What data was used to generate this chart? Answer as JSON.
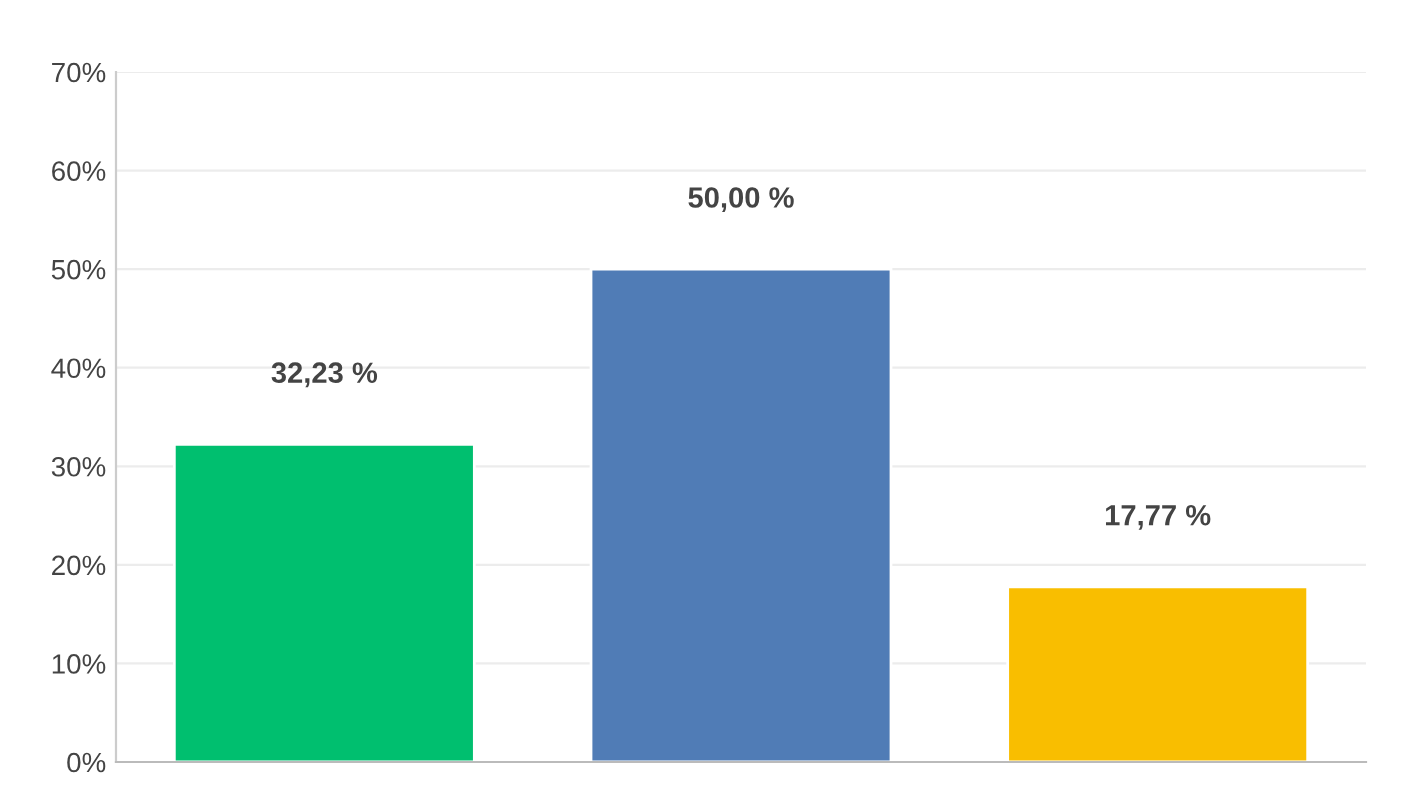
{
  "chart_data": {
    "type": "bar",
    "categories": [
      null,
      null,
      null
    ],
    "values": [
      32.23,
      50.0,
      17.77
    ],
    "colors": [
      "#00bf6f",
      "#507cb6",
      "#f9be00"
    ],
    "value_labels": [
      "32,23 %",
      "50,00 %",
      "17,77 %"
    ],
    "ylim": [
      0,
      70
    ],
    "yticks": [
      {
        "value": 0,
        "label": "0%"
      },
      {
        "value": 10,
        "label": "10%"
      },
      {
        "value": 20,
        "label": "20%"
      },
      {
        "value": 30,
        "label": "30%"
      },
      {
        "value": 40,
        "label": "40%"
      },
      {
        "value": 50,
        "label": "50%"
      },
      {
        "value": 60,
        "label": "60%"
      },
      {
        "value": 70,
        "label": "70%"
      }
    ],
    "grid": "y"
  }
}
